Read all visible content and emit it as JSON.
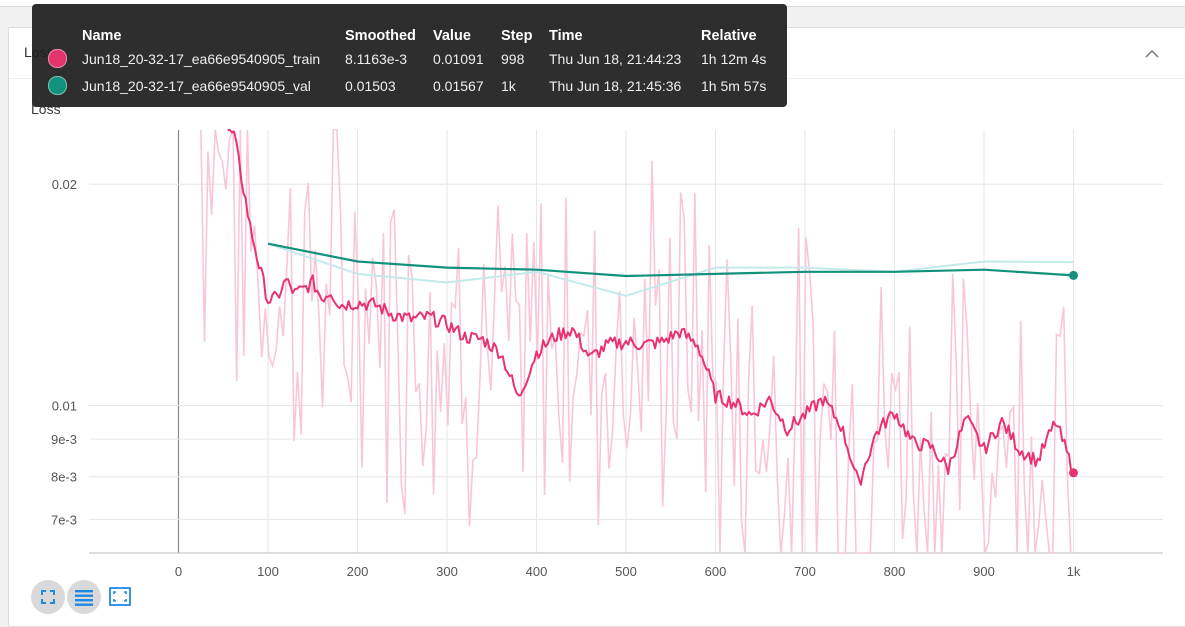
{
  "card": {
    "label": "Loss"
  },
  "chart_data": {
    "type": "line",
    "title": "Loss",
    "xlabel": "",
    "ylabel": "",
    "y_scale": "log",
    "xlim": [
      -100,
      1100
    ],
    "ylim": [
      0.0063,
      0.0237
    ],
    "x_ticks": [
      0,
      100,
      200,
      300,
      400,
      500,
      600,
      700,
      800,
      900,
      1000
    ],
    "x_tick_labels": [
      "0",
      "100",
      "200",
      "300",
      "400",
      "500",
      "600",
      "700",
      "800",
      "900",
      "1k"
    ],
    "y_ticks": [
      0.02,
      0.01,
      0.009,
      0.008,
      0.007
    ],
    "y_tick_labels": [
      "0.02",
      "0.01",
      "9e-3",
      "8e-3",
      "7e-3"
    ],
    "grid": true,
    "series": [
      {
        "name": "Jun18_20-32-17_ea66e9540905_train",
        "color": "#e8336f",
        "raw_color": "#f9c6d8",
        "x": [
          55,
          62,
          70,
          80,
          90,
          100,
          110,
          120,
          130,
          140,
          150,
          160,
          170,
          180,
          200,
          220,
          240,
          260,
          280,
          300,
          320,
          340,
          360,
          380,
          400,
          420,
          440,
          460,
          480,
          500,
          520,
          540,
          560,
          580,
          600,
          620,
          640,
          660,
          680,
          700,
          720,
          740,
          760,
          780,
          800,
          820,
          840,
          860,
          880,
          900,
          920,
          940,
          960,
          980,
          1000
        ],
        "smoothed": [
          0.0237,
          0.0233,
          0.0205,
          0.0175,
          0.0155,
          0.0139,
          0.014,
          0.0148,
          0.0142,
          0.0144,
          0.0147,
          0.014,
          0.0143,
          0.0137,
          0.0138,
          0.0137,
          0.0133,
          0.0131,
          0.0132,
          0.0129,
          0.0124,
          0.0123,
          0.0118,
          0.0102,
          0.0118,
          0.0124,
          0.0127,
          0.0116,
          0.0121,
          0.0122,
          0.0121,
          0.0122,
          0.0126,
          0.0121,
          0.0103,
          0.0101,
          0.0097,
          0.0102,
          0.0093,
          0.0097,
          0.0102,
          0.0094,
          0.0078,
          0.0092,
          0.0098,
          0.0089,
          0.0088,
          0.0082,
          0.0096,
          0.0087,
          0.0095,
          0.0087,
          0.0084,
          0.0095,
          0.0081
        ]
      },
      {
        "name": "Jun18_20-32-17_ea66e9540905_val",
        "color": "#12917d",
        "raw_color": "#c3e9ea",
        "x": [
          100,
          200,
          300,
          400,
          500,
          600,
          700,
          800,
          900,
          1000
        ],
        "smoothed": [
          0.0166,
          0.0157,
          0.0154,
          0.0153,
          0.015,
          0.0151,
          0.0152,
          0.0152,
          0.0153,
          0.01503
        ],
        "values": [
          0.0166,
          0.0151,
          0.0147,
          0.0152,
          0.0141,
          0.0154,
          0.0154,
          0.0152,
          0.0157,
          0.01567
        ]
      }
    ]
  },
  "tooltip": {
    "headers": {
      "name": "Name",
      "smoothed": "Smoothed",
      "value": "Value",
      "step": "Step",
      "time": "Time",
      "relative": "Relative"
    },
    "rows": [
      {
        "dot_color": "#e2336d",
        "name": "Jun18_20-32-17_ea66e9540905_train",
        "smoothed": "8.1163e-3",
        "value": "0.01091",
        "step": "998",
        "time": "Thu Jun 18, 21:44:23",
        "relative": "1h 12m 4s"
      },
      {
        "dot_color": "#12917d",
        "name": "Jun18_20-32-17_ea66e9540905_val",
        "smoothed": "0.01503",
        "value": "0.01567",
        "step": "1k",
        "time": "Thu Jun 18, 21:45:36",
        "relative": "1h 5m 57s"
      }
    ]
  },
  "controls": [
    {
      "name": "fullscreen-icon"
    },
    {
      "name": "log-scale-icon"
    },
    {
      "name": "fit-domain-icon"
    }
  ]
}
